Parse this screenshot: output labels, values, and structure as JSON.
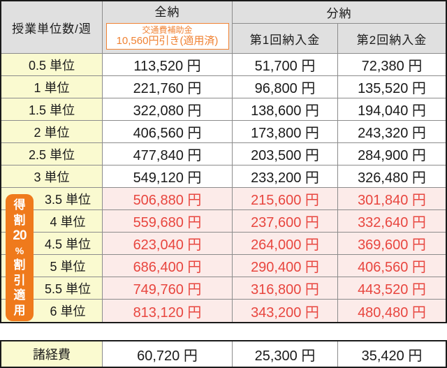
{
  "table": {
    "header": {
      "unit_col": "授業単位数/週",
      "full_payment": "全納",
      "note_line1": "交通費補助金",
      "note_line2": "10,560円引き(適用済)",
      "installment": "分納",
      "first_installment": "第1回納入金",
      "second_installment": "第2回納入金"
    },
    "rows": [
      {
        "unit": "0.5 単位",
        "full": "113,520 円",
        "first": "51,700 円",
        "second": "72,380 円",
        "discount": false
      },
      {
        "unit": "1 単位",
        "full": "221,760 円",
        "first": "96,800 円",
        "second": "135,520 円",
        "discount": false
      },
      {
        "unit": "1.5 単位",
        "full": "322,080 円",
        "first": "138,600 円",
        "second": "194,040 円",
        "discount": false
      },
      {
        "unit": "2 単位",
        "full": "406,560 円",
        "first": "173,800 円",
        "second": "243,320 円",
        "discount": false
      },
      {
        "unit": "2.5 単位",
        "full": "477,840 円",
        "first": "203,500 円",
        "second": "284,900 円",
        "discount": false
      },
      {
        "unit": "3 単位",
        "full": "549,120 円",
        "first": "233,200 円",
        "second": "326,480 円",
        "discount": false
      },
      {
        "unit": "3.5 単位",
        "full": "506,880 円",
        "first": "215,600 円",
        "second": "301,840 円",
        "discount": true
      },
      {
        "unit": "4 単位",
        "full": "559,680 円",
        "first": "237,600 円",
        "second": "332,640 円",
        "discount": true
      },
      {
        "unit": "4.5 単位",
        "full": "623,040 円",
        "first": "264,000 円",
        "second": "369,600 円",
        "discount": true
      },
      {
        "unit": "5 単位",
        "full": "686,400 円",
        "first": "290,400 円",
        "second": "406,560 円",
        "discount": true
      },
      {
        "unit": "5.5 単位",
        "full": "749,760 円",
        "first": "316,800 円",
        "second": "443,520 円",
        "discount": true
      },
      {
        "unit": "6 単位",
        "full": "813,120 円",
        "first": "343,200 円",
        "second": "480,480 円",
        "discount": true
      }
    ],
    "discount_badge": {
      "text": "得割20%割引適用",
      "chars": [
        "得",
        "割",
        "20",
        "%",
        "割",
        "引",
        "適",
        "用"
      ]
    },
    "footer": {
      "label": "諸経費",
      "full": "60,720 円",
      "first": "25,300 円",
      "second": "35,420 円"
    }
  },
  "colors": {
    "header_bg": "#e0e0e0",
    "unit_label_bg": "#fafad0",
    "discount_row_bg": "#fcebe9",
    "discount_text": "#e8463f",
    "badge_bg": "#ef7a1c",
    "accent_orange": "#f08233",
    "border_outer": "#1a1a1a",
    "border_inner": "#8c8c8c"
  }
}
